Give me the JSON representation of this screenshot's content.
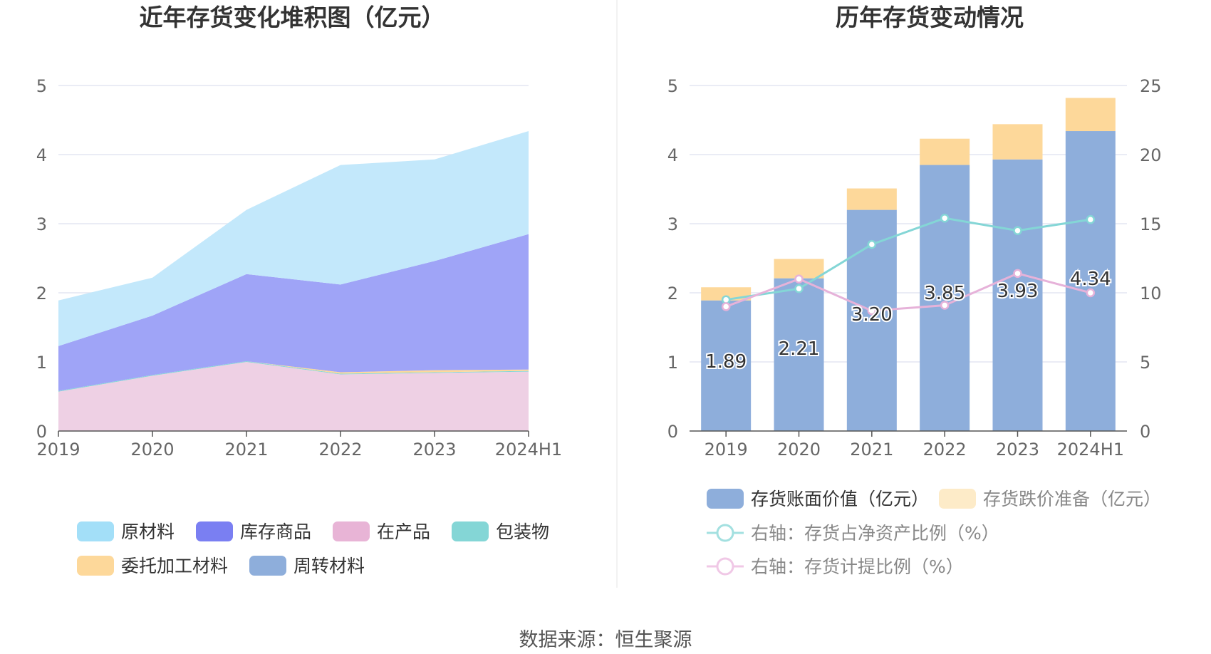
{
  "colors": {
    "raw_material": "#c3e8fb",
    "inventory_goods": "#9fa4f7",
    "wip": "#eed0e4",
    "packaging": "#84d6d6",
    "consigned": "#fdd89a",
    "turnover": "#8eaedb",
    "book_value": "#8eaedb",
    "provision": "#fdd89a",
    "ratio_line": "#84d6d6",
    "provision_line": "#e6b2d9",
    "legend_raw": "#a3dff8",
    "legend_goods": "#7a7ff2",
    "legend_wip": "#e8b4d6",
    "legend_packaging": "#84d6d6",
    "legend_consigned": "#fdd89a",
    "legend_turnover": "#8eaedb",
    "legend_book": "#8eaedb",
    "legend_provision": "#fdebc8",
    "legend_ratio": "#a3e0e0",
    "legend_prov_ratio": "#f0c8e6",
    "grid": "#e3e6f2",
    "axis": "#555555"
  },
  "source_label": "数据来源：恒生聚源",
  "chart_data": [
    {
      "type": "area",
      "stacked": true,
      "title": "近年存货变化堆积图（亿元）",
      "categories": [
        "2019",
        "2020",
        "2021",
        "2022",
        "2023",
        "2024H1"
      ],
      "ylim": [
        0,
        5
      ],
      "yticks": [
        "0",
        "1",
        "2",
        "3",
        "4",
        "5"
      ],
      "grid": true,
      "legend_position": "bottom",
      "series": [
        {
          "name": "在产品",
          "key": "wip",
          "values": [
            0.57,
            0.8,
            1.0,
            0.82,
            0.84,
            0.86
          ]
        },
        {
          "name": "包装物",
          "key": "packaging",
          "values": [
            0.01,
            0.01,
            0.01,
            0.01,
            0.01,
            0.01
          ]
        },
        {
          "name": "委托加工材料",
          "key": "consigned",
          "values": [
            0.0,
            0.0,
            0.0,
            0.02,
            0.03,
            0.02
          ]
        },
        {
          "name": "周转材料",
          "key": "turnover",
          "values": [
            0.0,
            0.0,
            0.0,
            0.0,
            0.0,
            0.0
          ]
        },
        {
          "name": "库存商品",
          "key": "inventory_goods",
          "values": [
            0.65,
            0.86,
            1.26,
            1.27,
            1.58,
            1.96
          ]
        },
        {
          "name": "原材料",
          "key": "raw_material",
          "values": [
            0.66,
            0.55,
            0.93,
            1.73,
            1.47,
            1.49
          ]
        }
      ],
      "legend": [
        {
          "name": "原材料",
          "key": "legend_raw"
        },
        {
          "name": "库存商品",
          "key": "legend_goods"
        },
        {
          "name": "在产品",
          "key": "legend_wip"
        },
        {
          "name": "包装物",
          "key": "legend_packaging"
        },
        {
          "name": "委托加工材料",
          "key": "legend_consigned"
        },
        {
          "name": "周转材料",
          "key": "legend_turnover"
        }
      ]
    },
    {
      "type": "bar",
      "stacked": true,
      "title": "历年存货变动情况",
      "categories": [
        "2019",
        "2020",
        "2021",
        "2022",
        "2023",
        "2024H1"
      ],
      "ylim": [
        0,
        5
      ],
      "yticks": [
        "0",
        "1",
        "2",
        "3",
        "4",
        "5"
      ],
      "y2lim": [
        0,
        25
      ],
      "y2ticks": [
        "0",
        "5",
        "10",
        "15",
        "20",
        "25"
      ],
      "grid": true,
      "legend_position": "bottom",
      "bar_series": [
        {
          "name": "存货账面价值（亿元）",
          "key": "book_value",
          "values": [
            1.89,
            2.21,
            3.2,
            3.85,
            3.93,
            4.34
          ],
          "labels": [
            "1.89",
            "2.21",
            "3.20",
            "3.85",
            "3.93",
            "4.34"
          ]
        },
        {
          "name": "存货跌价准备（亿元）",
          "key": "provision",
          "values": [
            0.19,
            0.28,
            0.31,
            0.38,
            0.51,
            0.48
          ]
        }
      ],
      "line_series": [
        {
          "name": "右轴：存货占净资产比例（%）",
          "key": "ratio_line",
          "values": [
            9.5,
            10.3,
            13.5,
            15.4,
            14.5,
            15.3
          ]
        },
        {
          "name": "右轴：存货计提比例（%）",
          "key": "provision_line",
          "values": [
            9.0,
            11.0,
            8.7,
            9.1,
            11.4,
            10.0
          ]
        }
      ],
      "legend": [
        {
          "name": "存货账面价值（亿元）",
          "key": "legend_book",
          "shape": "rect"
        },
        {
          "name": "存货跌价准备（亿元）",
          "key": "legend_provision",
          "shape": "rect"
        },
        {
          "name": "右轴：存货占净资产比例（%）",
          "key": "legend_ratio",
          "shape": "line"
        },
        {
          "name": "右轴：存货计提比例（%）",
          "key": "legend_prov_ratio",
          "shape": "line"
        }
      ]
    }
  ]
}
